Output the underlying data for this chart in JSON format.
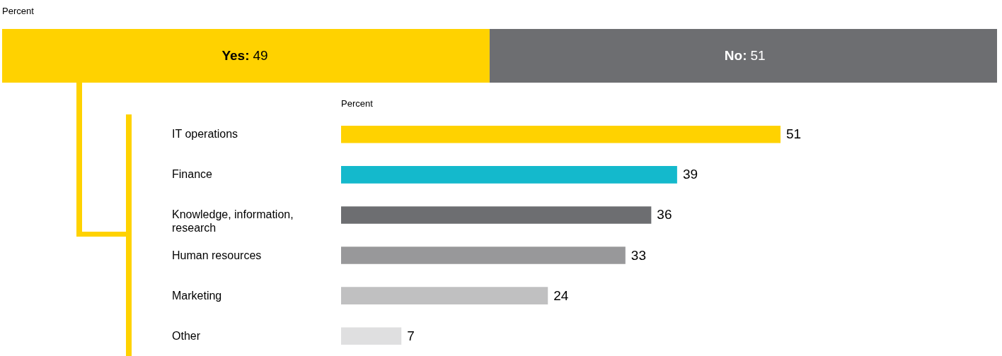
{
  "chart_data": [
    {
      "type": "bar",
      "title": "Percent",
      "orientation": "horizontal",
      "stacked": true,
      "data_labels": true,
      "categories": [
        null
      ],
      "series": [
        {
          "name": "Yes:",
          "color": "#ffd200",
          "values": [
            49
          ]
        },
        {
          "name": "No:",
          "color": "#6d6e71",
          "values": [
            51
          ]
        }
      ]
    },
    {
      "type": "bar",
      "title": "Percent",
      "orientation": "horizontal",
      "data_labels": true,
      "categories": [
        "IT operations",
        "Finance",
        "Knowledge, information, research",
        "Human resources",
        "Marketing",
        "Other"
      ],
      "values": [
        51,
        39,
        36,
        33,
        24,
        7
      ],
      "colors": [
        "#ffd200",
        "#14b9cc",
        "#6d6e71",
        "#98989a",
        "#c0c0c1",
        "#dfdfe0"
      ]
    }
  ]
}
